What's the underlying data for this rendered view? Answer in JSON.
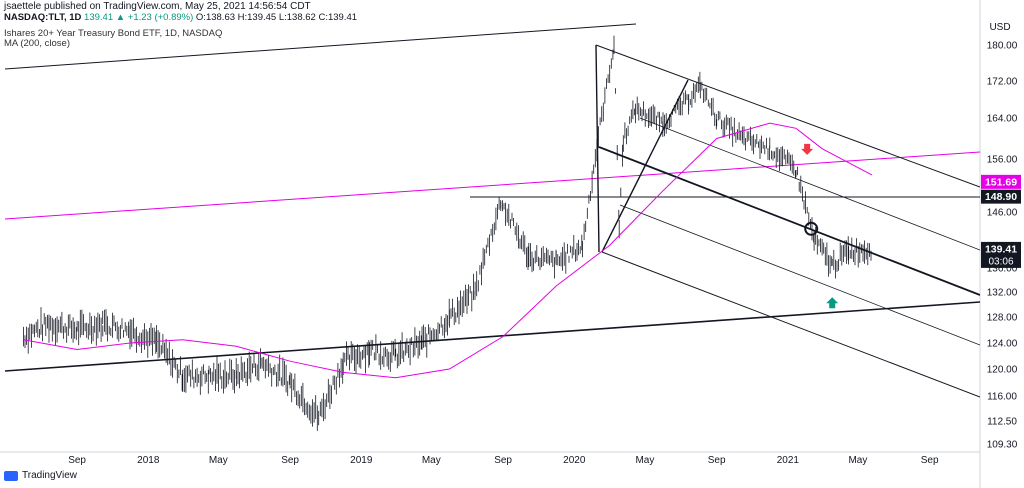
{
  "header": {
    "publisher_line": "jsaettele published on TradingView.com, May 25, 2021 14:56:54 CDT",
    "symbol": "NASDAQ:TLT, 1D",
    "last": "139.41",
    "change": "▲ +1.23 (+0.89%)",
    "ohlc": "O:138.63 H:139.45 L:138.62 C:139.41",
    "title": "Ishares 20+ Year Treasury Bond ETF, 1D, NASDAQ",
    "indicator": "MA (200, close)"
  },
  "footer": {
    "brand": "TradingView"
  },
  "chart_data": {
    "type": "line",
    "y_axis": {
      "label": "USD",
      "ticks": [
        "180.00",
        "172.00",
        "164.00",
        "156.00",
        "146.00",
        "136.00",
        "132.00",
        "128.00",
        "124.00",
        "120.00",
        "116.00",
        "112.50",
        "109.30"
      ],
      "range": [
        109.3,
        180
      ]
    },
    "x_axis": {
      "ticks": [
        "Sep",
        "2018",
        "May",
        "Sep",
        "2019",
        "May",
        "Sep",
        "2020",
        "May",
        "Sep",
        "2021",
        "May",
        "Sep"
      ],
      "range": [
        "2017-06",
        "2021-12"
      ]
    },
    "price_labels": [
      {
        "text": "151.69",
        "color": "#e600e6",
        "value": 151.69
      },
      {
        "text": "148.90",
        "color": "#131722",
        "value": 148.9
      },
      {
        "text": "139.41",
        "color": "#131722",
        "value": 139.41,
        "sub": "03:06"
      }
    ],
    "series": [
      {
        "name": "TLT",
        "style": "bars",
        "x": [
          "2017-06-01",
          "2017-07-15",
          "2017-09-01",
          "2017-10-15",
          "2017-12-01",
          "2018-01-15",
          "2018-03-01",
          "2018-04-15",
          "2018-06-01",
          "2018-07-15",
          "2018-09-01",
          "2018-10-20",
          "2018-12-01",
          "2019-01-15",
          "2019-03-01",
          "2019-04-15",
          "2019-06-01",
          "2019-07-15",
          "2019-08-28",
          "2019-10-15",
          "2019-12-01",
          "2020-01-15",
          "2020-03-09",
          "2020-03-18",
          "2020-03-25",
          "2020-04-15",
          "2020-06-01",
          "2020-07-15",
          "2020-08-04",
          "2020-09-01",
          "2020-10-15",
          "2020-12-01",
          "2021-01-15",
          "2021-02-15",
          "2021-03-18",
          "2021-04-15",
          "2021-05-25"
        ],
        "y": [
          125,
          127,
          126,
          127,
          126,
          124,
          119,
          119,
          119,
          121,
          118,
          113,
          121,
          123,
          122,
          124,
          128,
          132,
          148,
          138,
          137,
          140,
          180,
          143,
          160,
          166,
          163,
          168,
          171,
          164,
          160,
          158,
          154,
          141,
          136.5,
          139,
          139.4
        ]
      },
      {
        "name": "MA (200, close)",
        "style": "line",
        "color": "#e600e6",
        "x": [
          "2017-06-01",
          "2017-09-01",
          "2017-12-01",
          "2018-03-01",
          "2018-06-01",
          "2018-09-01",
          "2018-12-01",
          "2019-03-01",
          "2019-06-01",
          "2019-09-01",
          "2019-12-01",
          "2020-03-01",
          "2020-06-01",
          "2020-09-01",
          "2020-12-01",
          "2021-01-15",
          "2021-03-01",
          "2021-05-25"
        ],
        "y": [
          124.5,
          123,
          124,
          124.5,
          123.5,
          121.2,
          119.5,
          118.7,
          120,
          125,
          133,
          140,
          150,
          160,
          163,
          162,
          158,
          153
        ]
      }
    ],
    "lines": [
      {
        "name": "pitchfork-median",
        "color": "#131722"
      },
      {
        "name": "upper-trendline",
        "color": "#131722"
      },
      {
        "name": "lower-trendline",
        "color": "#131722"
      },
      {
        "name": "pink-trendline",
        "color": "#e600e6"
      },
      {
        "name": "horizontal-148.90",
        "color": "#131722"
      }
    ],
    "annotations": [
      {
        "name": "red-down-arrow",
        "color": "#f23645",
        "date": "2021-02-03",
        "price": 157
      },
      {
        "name": "green-up-arrow",
        "color": "#089981",
        "date": "2021-03-18",
        "price": 131
      },
      {
        "name": "circle-marker",
        "color": "#131722",
        "date": "2021-02-10",
        "price": 143
      }
    ]
  }
}
